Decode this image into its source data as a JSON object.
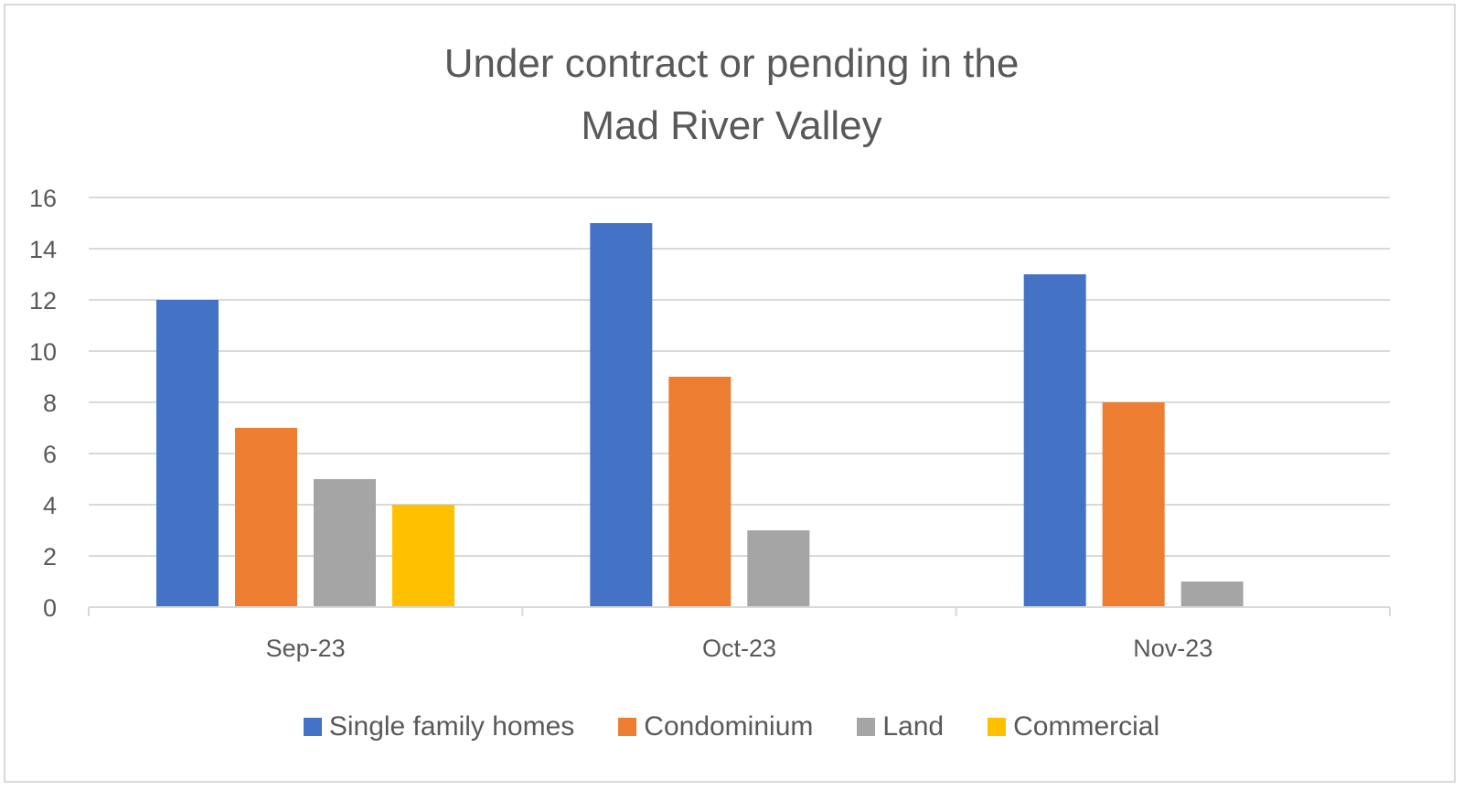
{
  "chart_data": {
    "type": "bar",
    "title_lines": [
      "Under contract or pending in the",
      "Mad River Valley"
    ],
    "categories": [
      "Sep-23",
      "Oct-23",
      "Nov-23"
    ],
    "series": [
      {
        "name": "Single family homes",
        "color": "#4472c4",
        "values": [
          12,
          15,
          13
        ]
      },
      {
        "name": "Condominium",
        "color": "#ed7d31",
        "values": [
          7,
          9,
          8
        ]
      },
      {
        "name": "Land",
        "color": "#a5a5a5",
        "values": [
          5,
          3,
          1
        ]
      },
      {
        "name": "Commercial",
        "color": "#ffc000",
        "values": [
          4,
          0,
          0
        ]
      }
    ],
    "ylim": [
      0,
      16
    ],
    "yticks": [
      0,
      2,
      4,
      6,
      8,
      10,
      12,
      14,
      16
    ],
    "grid": true,
    "legend_position": "bottom",
    "xlabel": "",
    "ylabel": ""
  }
}
